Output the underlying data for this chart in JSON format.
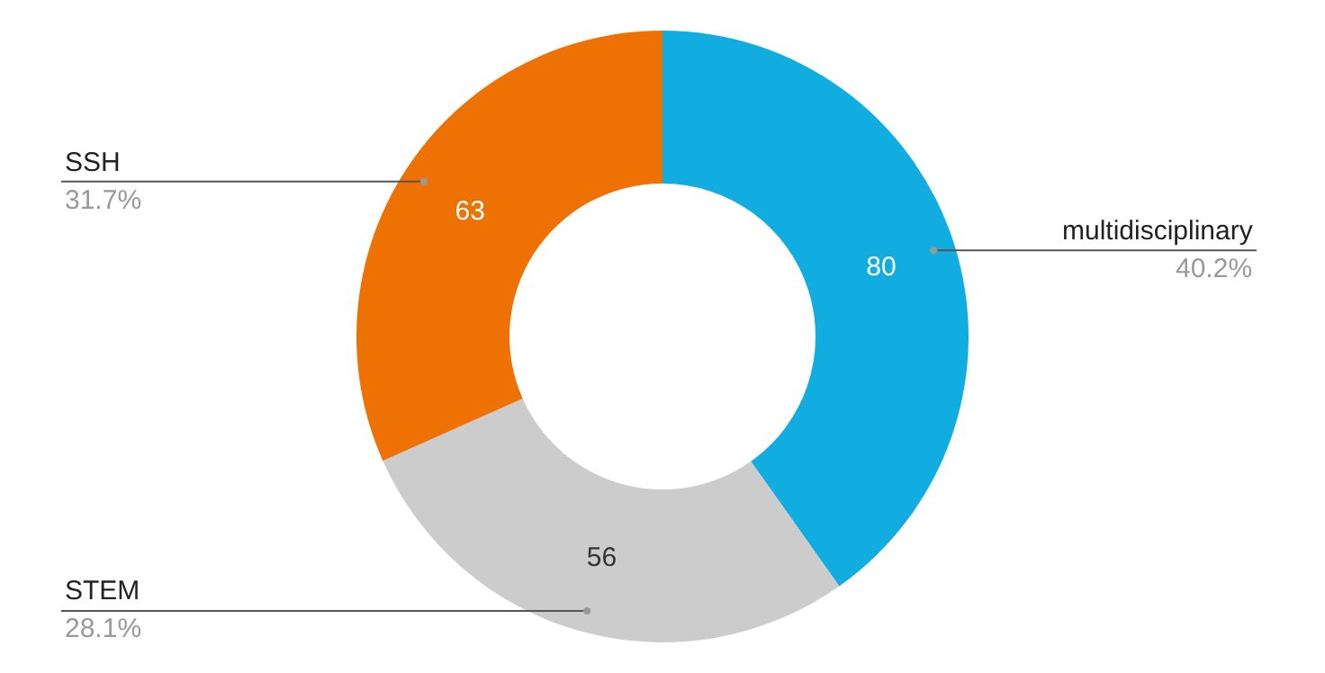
{
  "chart_data": {
    "type": "donut",
    "categories": [
      "multidisciplinary",
      "STEM",
      "SSH"
    ],
    "values": [
      80,
      56,
      63
    ],
    "colors": [
      "#12ade0",
      "#cccccc",
      "#ee7203"
    ],
    "data_labels": true,
    "annotations": [
      "40.2%",
      "28.1%",
      "31.7%"
    ],
    "legend": false
  }
}
